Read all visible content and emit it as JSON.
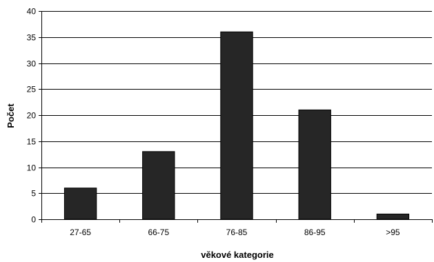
{
  "chart_data": {
    "type": "bar",
    "categories": [
      "27-65",
      "66-75",
      "76-85",
      "86-95",
      ">95"
    ],
    "values": [
      6,
      13,
      36,
      21,
      1
    ],
    "title": "",
    "xlabel": "věkové kategorie",
    "ylabel": "Počet",
    "ylim": [
      0,
      40
    ],
    "yticks": [
      0,
      5,
      10,
      15,
      20,
      25,
      30,
      35,
      40
    ],
    "grid": true,
    "legend": "none",
    "colors": {
      "bar": "#262626",
      "grid": "#000000",
      "axis": "#000000"
    }
  }
}
